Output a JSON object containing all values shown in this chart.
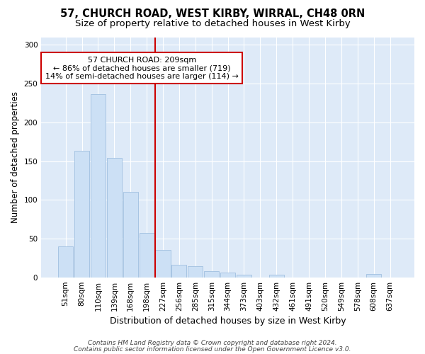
{
  "title1": "57, CHURCH ROAD, WEST KIRBY, WIRRAL, CH48 0RN",
  "title2": "Size of property relative to detached houses in West Kirby",
  "xlabel": "Distribution of detached houses by size in West Kirby",
  "ylabel": "Number of detached properties",
  "footer1": "Contains HM Land Registry data © Crown copyright and database right 2024.",
  "footer2": "Contains public sector information licensed under the Open Government Licence v3.0.",
  "categories": [
    "51sqm",
    "80sqm",
    "110sqm",
    "139sqm",
    "168sqm",
    "198sqm",
    "227sqm",
    "256sqm",
    "285sqm",
    "315sqm",
    "344sqm",
    "373sqm",
    "403sqm",
    "432sqm",
    "461sqm",
    "491sqm",
    "520sqm",
    "549sqm",
    "578sqm",
    "608sqm",
    "637sqm"
  ],
  "values": [
    40,
    163,
    236,
    154,
    110,
    57,
    35,
    16,
    14,
    8,
    6,
    3,
    0,
    3,
    0,
    0,
    0,
    0,
    0,
    4,
    0
  ],
  "bar_color": "#cce0f5",
  "bar_edge_color": "#a0c0e0",
  "vline_color": "#cc0000",
  "vline_x_index": 5,
  "annotation_text": "57 CHURCH ROAD: 209sqm\n← 86% of detached houses are smaller (719)\n14% of semi-detached houses are larger (114) →",
  "annotation_box_color": "#ffffff",
  "annotation_box_edge_color": "#cc0000",
  "ylim": [
    0,
    310
  ],
  "yticks": [
    0,
    50,
    100,
    150,
    200,
    250,
    300
  ],
  "plot_bg_color": "#deeaf8",
  "fig_bg_color": "#ffffff",
  "grid_color": "#ffffff",
  "title1_fontsize": 10.5,
  "title2_fontsize": 9.5,
  "xlabel_fontsize": 9,
  "ylabel_fontsize": 8.5,
  "tick_fontsize": 7.5,
  "footer_fontsize": 6.5
}
